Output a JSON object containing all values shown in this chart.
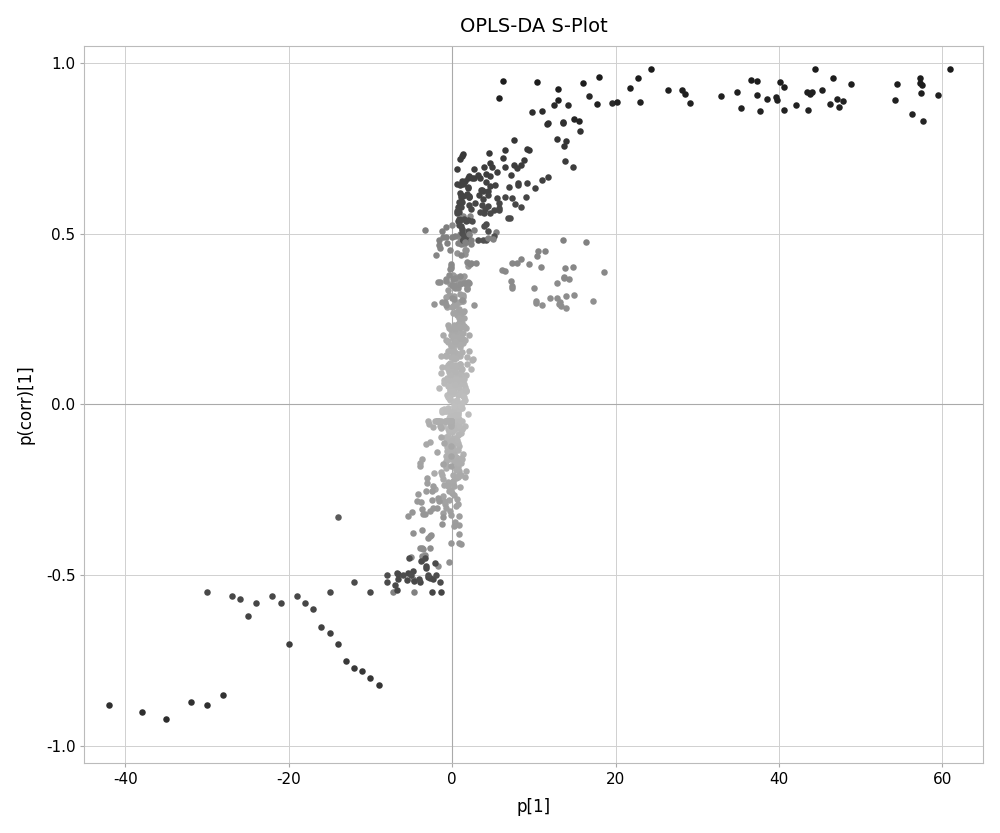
{
  "title": "OPLS-DA S-Plot",
  "xlabel": "p[1]",
  "ylabel": "p(corr)[1]",
  "xlim": [
    -45,
    65
  ],
  "ylim": [
    -1.05,
    1.05
  ],
  "xticks": [
    -40,
    -20,
    0,
    20,
    40,
    60
  ],
  "yticks": [
    -1.0,
    -0.5,
    0.0,
    0.5,
    1.0
  ],
  "background_color": "#ffffff",
  "grid_color": "#d0d0d0",
  "point_size": 22,
  "seed": 99
}
